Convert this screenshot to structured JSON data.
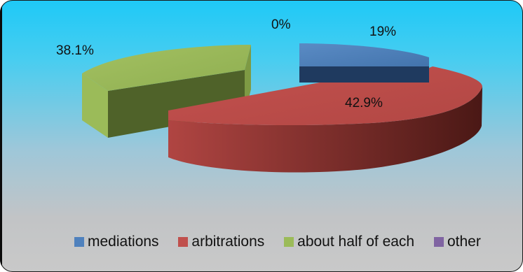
{
  "chart_data": {
    "type": "pie",
    "title": "",
    "categories": [
      "mediations",
      "arbitrations",
      "about half of each",
      "other"
    ],
    "values": [
      19,
      42.9,
      38.1,
      0
    ],
    "labels": [
      "19%",
      "42.9%",
      "38.1%",
      "0%"
    ],
    "colors": [
      "#4f81bd",
      "#c0504d",
      "#9bbb59",
      "#8064a2"
    ],
    "legend_position": "bottom",
    "three_d": true,
    "exploded": true
  }
}
